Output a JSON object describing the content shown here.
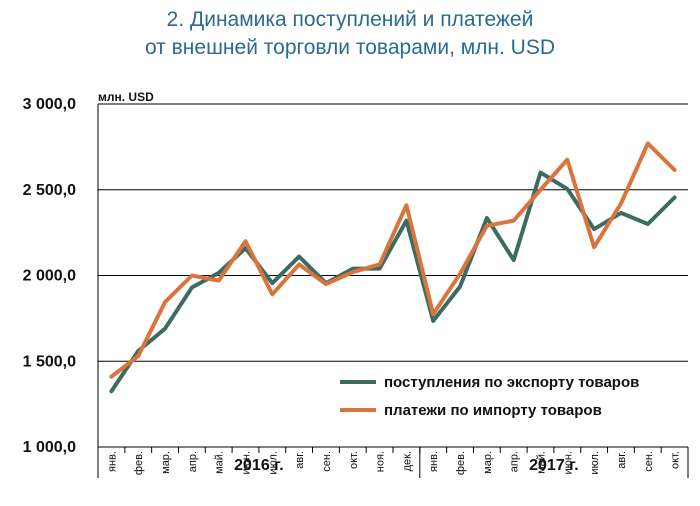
{
  "chart_data": {
    "type": "line",
    "title_lines": [
      "2. Динамика поступлений и платежей",
      "от внешней торговли товарами, млн. USD"
    ],
    "unit_label": "млн. USD",
    "ylim": [
      1000,
      3000
    ],
    "yticks": [
      1000,
      1500,
      2000,
      2500,
      3000
    ],
    "ytick_labels": [
      "1 000,0",
      "1 500,0",
      "2 000,0",
      "2 500,0",
      "3 000,0"
    ],
    "grid": true,
    "legend_position": "bottom-right",
    "categories": [
      "янв.",
      "фев.",
      "мар.",
      "апр.",
      "май.",
      "июн.",
      "июл.",
      "авг.",
      "сен.",
      "окт.",
      "ноя.",
      "дек.",
      "янв.",
      "фев.",
      "мар.",
      "апр.",
      "май.",
      "июн.",
      "июл.",
      "авг.",
      "сен.",
      "окт."
    ],
    "year_groups": [
      {
        "label": "2016 г.",
        "start": 0,
        "end": 11
      },
      {
        "label": "2017 г.",
        "start": 12,
        "end": 21
      }
    ],
    "series": [
      {
        "name": "поступления по экспорту товаров",
        "color": "#3c6b61",
        "values": [
          1325,
          1560,
          1690,
          1930,
          2015,
          2160,
          1955,
          2110,
          1955,
          2040,
          2040,
          2320,
          1735,
          1935,
          2335,
          2090,
          2600,
          2505,
          2270,
          2365,
          2300,
          2455
        ]
      },
      {
        "name": "платежи по импорту товаров",
        "color": "#d9743d",
        "values": [
          1410,
          1530,
          1845,
          2000,
          1970,
          2200,
          1890,
          2065,
          1950,
          2020,
          2065,
          2410,
          1775,
          2010,
          2290,
          2320,
          2500,
          2675,
          2165,
          2420,
          2770,
          2615
        ]
      }
    ]
  }
}
